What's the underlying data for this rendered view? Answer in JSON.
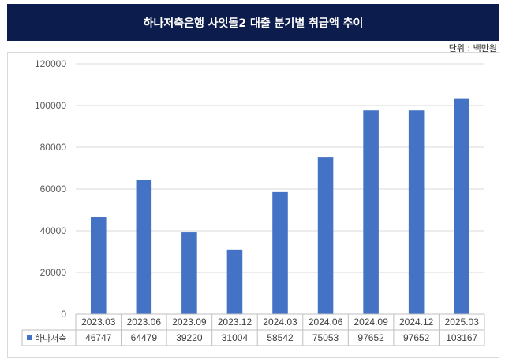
{
  "header": {
    "title": "하나저축은행 사잇돌2 대출 분기별 취급액 추이",
    "unit_note": "단위 : 백만원"
  },
  "colors": {
    "title_bg": "#0c1c4c",
    "bar": "#4472c4"
  },
  "chart_data": {
    "type": "bar",
    "title": "하나저축은행 사잇돌2 대출 분기별 취급액 추이",
    "categories": [
      "2023.03",
      "2023.06",
      "2023.09",
      "2023.12",
      "2024.03",
      "2024.06",
      "2024.09",
      "2024.12",
      "2025.03"
    ],
    "series": [
      {
        "name": "하나저축",
        "values": [
          46747,
          64479,
          39220,
          31004,
          58542,
          75053,
          97652,
          97652,
          103167
        ]
      }
    ],
    "ylim": [
      0,
      120000
    ],
    "yticks": [
      0,
      20000,
      40000,
      60000,
      80000,
      100000,
      120000
    ],
    "grid": true,
    "legend": "data-table"
  }
}
